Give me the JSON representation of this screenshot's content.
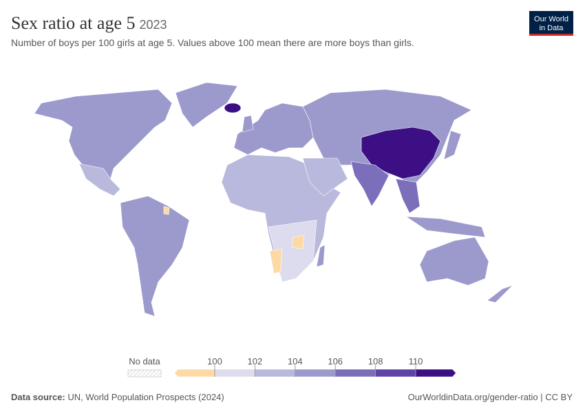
{
  "header": {
    "title": "Sex ratio at age 5",
    "year": "2023",
    "subtitle": "Number of boys per 100 girls at age 5. Values above 100 mean there are more boys than girls.",
    "logo": [
      "Our World",
      "in Data"
    ]
  },
  "legend": {
    "no_data": "No data",
    "ticks": [
      100,
      102,
      104,
      106,
      108,
      110
    ],
    "colors": [
      "#fddaa5",
      "#dcdcee",
      "#b9b9dd",
      "#9c9acc",
      "#7b6eba",
      "#5f44a6",
      "#3d0f84"
    ]
  },
  "footer": {
    "source_label": "Data source:",
    "source": "UN, World Population Prospects (2024)",
    "url": "OurWorldinData.org/gender-ratio | CC BY"
  }
}
